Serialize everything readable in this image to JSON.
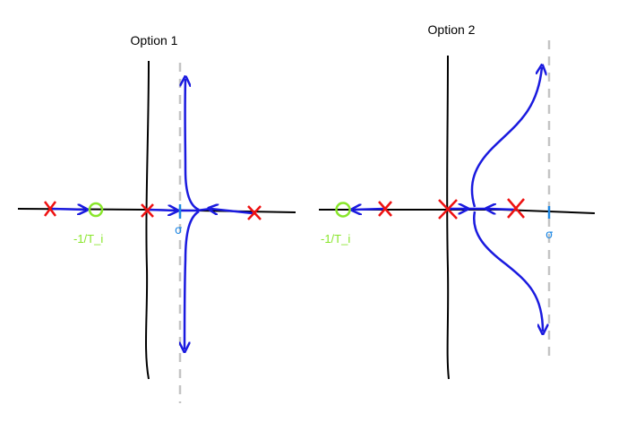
{
  "colors": {
    "axis": "#000000",
    "locus": "#1a1adf",
    "pole": "#ee1111",
    "zero": "#88e62a",
    "sigma": "#1e88e5",
    "asymptote": "#c4c4c4"
  },
  "option1": {
    "title": "Option 1",
    "zero_label": "-1/T_i",
    "sigma_label": "σ",
    "pole_icon": "x-mark",
    "zero_icon": "circle"
  },
  "option2": {
    "title": "Option 2",
    "zero_label": "-1/T_i",
    "sigma_label": "σ",
    "pole_icon": "x-mark",
    "zero_icon": "circle"
  }
}
